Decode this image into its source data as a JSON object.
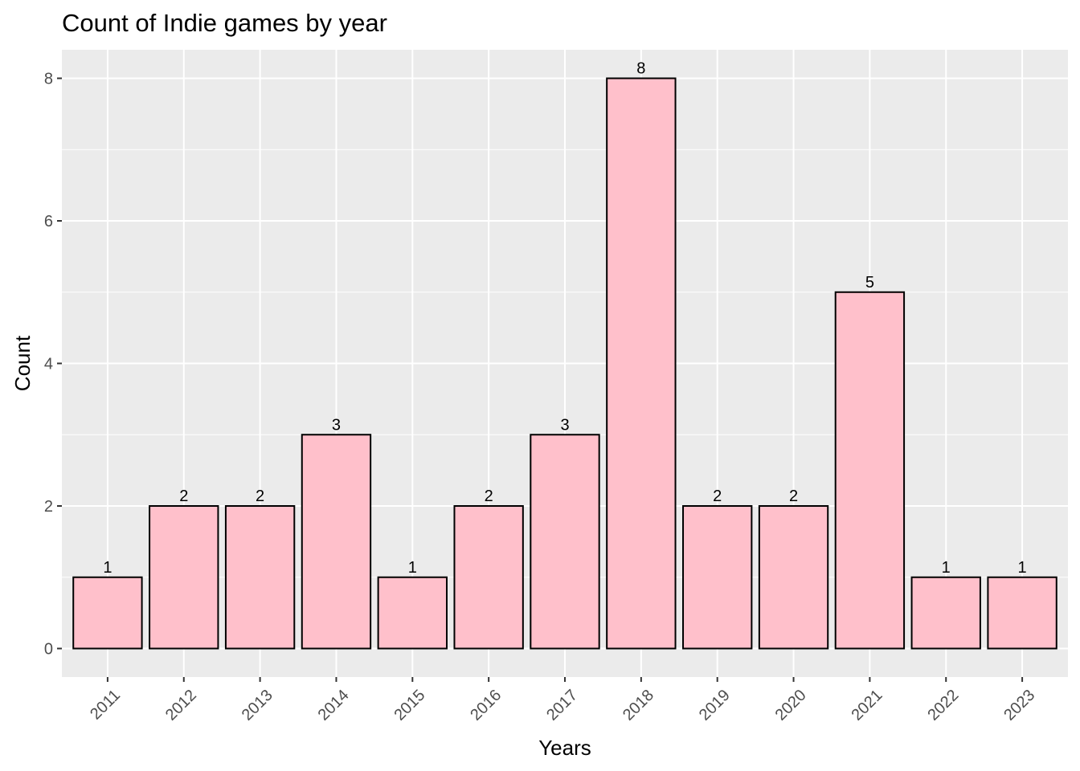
{
  "chart_data": {
    "type": "bar",
    "title": "Count of Indie games by year",
    "xlabel": "Years",
    "ylabel": "Count",
    "categories": [
      "2011",
      "2012",
      "2013",
      "2014",
      "2015",
      "2016",
      "2017",
      "2018",
      "2019",
      "2020",
      "2021",
      "2022",
      "2023"
    ],
    "values": [
      1,
      2,
      2,
      3,
      1,
      2,
      3,
      8,
      2,
      2,
      5,
      1,
      1
    ],
    "ylim": [
      -0.4,
      8.4
    ],
    "yticks": [
      0,
      2,
      4,
      6,
      8
    ],
    "grid": true,
    "legend": "none",
    "x_tick_rotation_deg": 45
  },
  "colors": {
    "panel_background": "#ebebeb",
    "grid_major": "#ffffff",
    "bar_fill": "#ffc0cb",
    "bar_outline": "#000000",
    "tick_text": "#4d4d4d"
  }
}
